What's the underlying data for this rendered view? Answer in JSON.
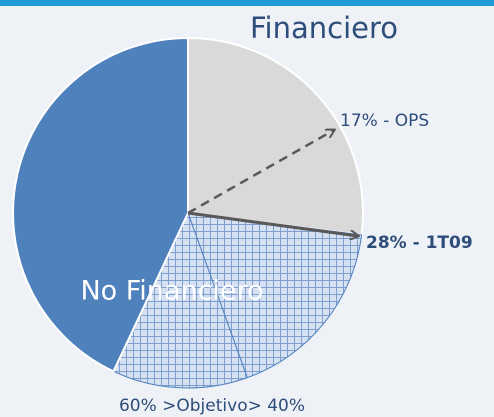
{
  "chart_data": {
    "type": "pie",
    "categories": [
      "Financiero",
      null,
      null,
      "No Financiero"
    ],
    "values": [
      27,
      17.5,
      12.5,
      43
    ],
    "colors": [
      "#d9d9d9",
      "#c9d7ec",
      "#c9d7ec",
      "#4f81bd"
    ],
    "hatched": [
      false,
      true,
      true,
      false
    ],
    "annotations": [
      "17% - OPS",
      "28% - 1T09",
      "60% >Objetivo> 40%"
    ]
  }
}
